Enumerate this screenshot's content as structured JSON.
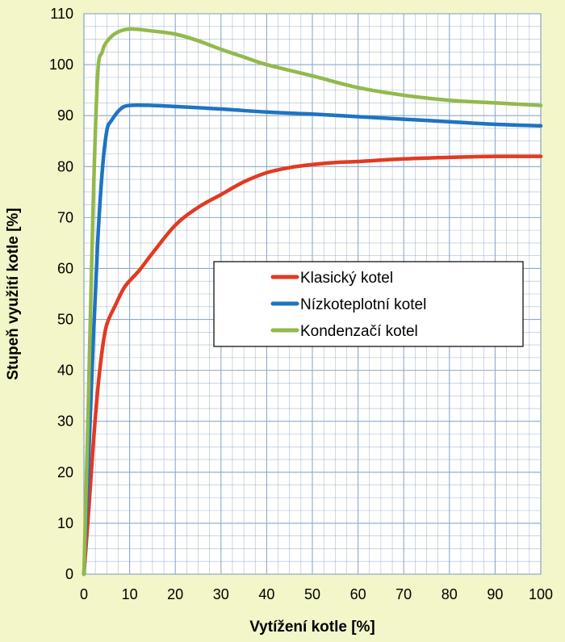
{
  "colors": {
    "background": "#f2f6c8",
    "plot_area": "#ffffff",
    "grid": "#8ea9c8",
    "klasicky": "#e23a22",
    "nizkoteplotni": "#1f73c2",
    "kondenzacni": "#93b94b"
  },
  "chart_data": {
    "type": "line",
    "xlabel": "Vytížení kotle [%]",
    "ylabel": "Stupeň využití kotle [%]",
    "xlim": [
      0,
      100
    ],
    "ylim": [
      0,
      110
    ],
    "x_ticks": [
      0,
      10,
      20,
      30,
      40,
      50,
      60,
      70,
      80,
      90,
      100
    ],
    "y_ticks": [
      0,
      10,
      20,
      30,
      40,
      50,
      60,
      70,
      80,
      90,
      100,
      110
    ],
    "grid": true,
    "legend_position": "center-right",
    "series": [
      {
        "name": "Klasický kotel",
        "color": "#e23a22",
        "points": [
          [
            0,
            0
          ],
          [
            1,
            12
          ],
          [
            2,
            25
          ],
          [
            3,
            36
          ],
          [
            4,
            44
          ],
          [
            5,
            49
          ],
          [
            7,
            53
          ],
          [
            9,
            56.5
          ],
          [
            12,
            59.5
          ],
          [
            15,
            63
          ],
          [
            20,
            68.5
          ],
          [
            25,
            72
          ],
          [
            30,
            74.5
          ],
          [
            35,
            77
          ],
          [
            40,
            78.8
          ],
          [
            45,
            79.8
          ],
          [
            50,
            80.4
          ],
          [
            55,
            80.8
          ],
          [
            60,
            81
          ],
          [
            70,
            81.5
          ],
          [
            80,
            81.8
          ],
          [
            90,
            82
          ],
          [
            100,
            82
          ]
        ]
      },
      {
        "name": "Nízkoteplotní kotel",
        "color": "#1f73c2",
        "points": [
          [
            0,
            0
          ],
          [
            1,
            22
          ],
          [
            2,
            45
          ],
          [
            3,
            65
          ],
          [
            4,
            79
          ],
          [
            5,
            87
          ],
          [
            6,
            89
          ],
          [
            8,
            91.3
          ],
          [
            10,
            92
          ],
          [
            15,
            92
          ],
          [
            20,
            91.8
          ],
          [
            30,
            91.3
          ],
          [
            40,
            90.7
          ],
          [
            50,
            90.3
          ],
          [
            60,
            89.8
          ],
          [
            70,
            89.3
          ],
          [
            80,
            88.8
          ],
          [
            90,
            88.3
          ],
          [
            100,
            88
          ]
        ]
      },
      {
        "name": "Kondenzační kotel",
        "color": "#93b94b",
        "points": [
          [
            0,
            0
          ],
          [
            1,
            35
          ],
          [
            2,
            72
          ],
          [
            3,
            98
          ],
          [
            4,
            102.5
          ],
          [
            5,
            104.5
          ],
          [
            7,
            106.2
          ],
          [
            10,
            107
          ],
          [
            15,
            106.6
          ],
          [
            20,
            106
          ],
          [
            25,
            104.7
          ],
          [
            30,
            103
          ],
          [
            35,
            101.5
          ],
          [
            40,
            100
          ],
          [
            50,
            97.8
          ],
          [
            60,
            95.5
          ],
          [
            70,
            94
          ],
          [
            80,
            93
          ],
          [
            90,
            92.5
          ],
          [
            100,
            92
          ]
        ]
      }
    ]
  },
  "legend": {
    "items": [
      {
        "label": "Klasický kotel",
        "color": "#e23a22"
      },
      {
        "label": "Nízkoteplotní kotel",
        "color": "#1f73c2"
      },
      {
        "label": "Kondenzačí kotel",
        "color": "#93b94b"
      }
    ]
  }
}
